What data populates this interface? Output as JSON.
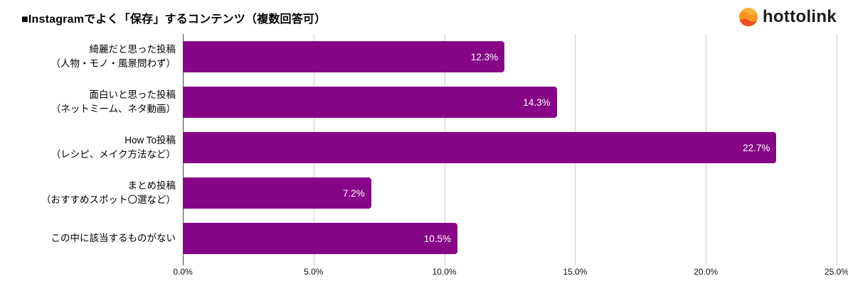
{
  "header": {
    "title": "■Instagramでよく「保存」するコンテンツ（複数回答可）",
    "logo_text": "hottolink"
  },
  "colors": {
    "bar": "#870687",
    "gridline": "#cccccc",
    "zero_axis": "#444444",
    "value_label": "#ffffff",
    "logo_orange_light": "#FBB040",
    "logo_orange_mid": "#F7941E",
    "logo_orange_dark": "#EF4E23"
  },
  "chart_data": {
    "type": "bar",
    "orientation": "horizontal",
    "title": "■Instagramでよく「保存」するコンテンツ（複数回答可）",
    "xlabel": "",
    "ylabel": "",
    "xlim": [
      0,
      25
    ],
    "grid": true,
    "legend": false,
    "categories": [
      [
        "綺麗だと思った投稿",
        "（人物・モノ・風景問わず）"
      ],
      [
        "面白いと思った投稿",
        "（ネットミーム、ネタ動画）"
      ],
      [
        "How To投稿",
        "（レシピ、メイク方法など）"
      ],
      [
        "まとめ投稿",
        "（おすすめスポット〇選など）"
      ],
      [
        "この中に該当するものがない"
      ]
    ],
    "values": [
      12.3,
      14.3,
      22.7,
      7.2,
      10.5
    ],
    "value_labels": [
      "12.3%",
      "14.3%",
      "22.7%",
      "7.2%",
      "10.5%"
    ],
    "x_ticks": [
      {
        "value": 0,
        "label": "0.0%"
      },
      {
        "value": 5,
        "label": "5.0%"
      },
      {
        "value": 10,
        "label": "10.0%"
      },
      {
        "value": 15,
        "label": "15.0%"
      },
      {
        "value": 20,
        "label": "20.0%"
      },
      {
        "value": 25,
        "label": "25.0%"
      }
    ]
  }
}
